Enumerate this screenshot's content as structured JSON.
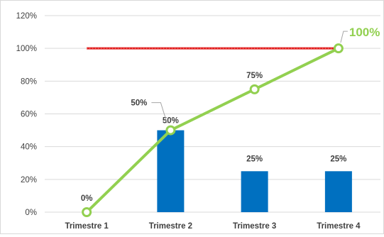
{
  "chart_data": {
    "type": "bar",
    "categories": [
      "Trimestre 1",
      "Trimestre 2",
      "Trimestre 3",
      "Trimestre 4"
    ],
    "ylim": [
      0,
      1.2
    ],
    "yticks": [
      0,
      0.2,
      0.4,
      0.6,
      0.8,
      1.0,
      1.2
    ],
    "ytick_labels": [
      "0%",
      "20%",
      "40%",
      "60%",
      "80%",
      "100%",
      "120%"
    ],
    "grid": true,
    "series": [
      {
        "kind": "bar",
        "color": "#0070c0",
        "values": [
          0,
          0.5,
          0.25,
          0.25
        ],
        "labels": [
          "",
          "50%",
          "25%",
          "25%"
        ]
      },
      {
        "kind": "line",
        "color": "#92d050",
        "marker": "hollow-circle",
        "values": [
          0,
          0.5,
          0.75,
          1.0
        ],
        "labels": [
          "0%",
          "50%",
          "75%",
          "100%"
        ]
      },
      {
        "kind": "line",
        "color": "#e02020",
        "style": "target",
        "values": [
          1.0,
          1.0,
          1.0,
          1.0
        ]
      }
    ]
  }
}
